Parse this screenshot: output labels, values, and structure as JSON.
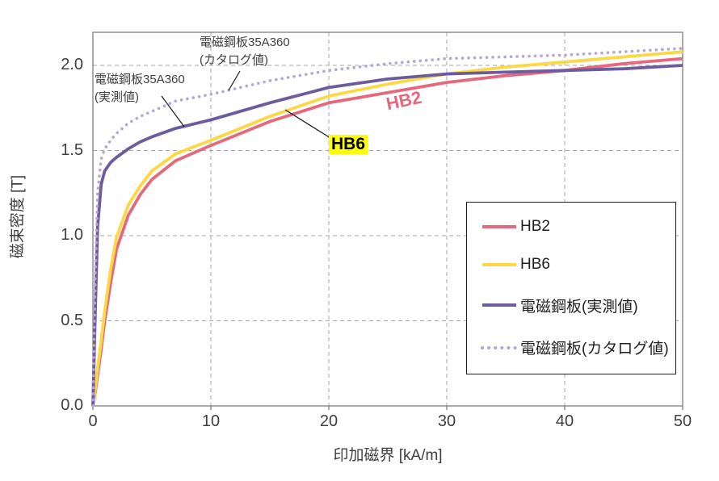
{
  "chart_data": {
    "type": "line",
    "title": "",
    "xlabel": "印加磁界 [kA/m]",
    "ylabel": "磁束密度 [T]",
    "xlim": [
      0,
      50
    ],
    "ylim": [
      0,
      2.2
    ],
    "x_ticks": [
      0,
      10,
      20,
      30,
      40,
      50
    ],
    "y_ticks": [
      "0.0",
      "0.5",
      "1.0",
      "1.5",
      "2.0"
    ],
    "grid": "dashed",
    "legend_position": "inside-lower-right",
    "x": [
      0,
      0.2,
      0.4,
      0.7,
      1,
      1.5,
      2,
      3,
      4,
      5,
      7,
      10,
      15,
      20,
      25,
      30,
      35,
      40,
      45,
      50
    ],
    "series": [
      {
        "name": "HB2",
        "color": "#e5697d",
        "style": "solid",
        "values": [
          0,
          0.08,
          0.18,
          0.33,
          0.5,
          0.72,
          0.92,
          1.12,
          1.24,
          1.33,
          1.44,
          1.53,
          1.67,
          1.78,
          1.84,
          1.9,
          1.94,
          1.97,
          2.01,
          2.04
        ]
      },
      {
        "name": "HB6",
        "color": "#fbd844",
        "style": "solid",
        "values": [
          0,
          0.1,
          0.22,
          0.38,
          0.56,
          0.8,
          0.99,
          1.18,
          1.29,
          1.38,
          1.48,
          1.56,
          1.7,
          1.82,
          1.89,
          1.95,
          1.99,
          2.02,
          2.05,
          2.08
        ]
      },
      {
        "name": "電磁鋼板(実測値)",
        "color": "#6c5b9d",
        "style": "solid",
        "values": [
          0,
          0.55,
          1.05,
          1.3,
          1.38,
          1.43,
          1.46,
          1.51,
          1.55,
          1.58,
          1.63,
          1.68,
          1.78,
          1.87,
          1.92,
          1.95,
          1.96,
          1.97,
          1.98,
          2.0
        ]
      },
      {
        "name": "電磁鋼板(カタログ値)",
        "color": "#b6a6d8",
        "style": "dotted",
        "values": [
          0,
          0.75,
          1.25,
          1.45,
          1.51,
          1.56,
          1.6,
          1.66,
          1.7,
          1.73,
          1.79,
          1.83,
          1.91,
          1.97,
          2.01,
          2.04,
          2.05,
          2.06,
          2.08,
          2.1
        ]
      }
    ]
  },
  "annotations": {
    "catalog": {
      "line1": "電磁鋼板35A360",
      "line2": "(カタログ値)"
    },
    "measured": {
      "line1": "電磁鋼板35A360",
      "line2": "(実測値)"
    },
    "hb2_label": "HB2",
    "hb6_label": "HB6"
  },
  "colors": {
    "hb2": "#e5697d",
    "hb6": "#fbd844",
    "steel_measured": "#6c5b9d",
    "steel_catalog": "#b6a6d8",
    "grid": "#a6a6a6",
    "frame": "#808080",
    "text": "#3f3f3f",
    "hb6_highlight": "#ffff00"
  }
}
